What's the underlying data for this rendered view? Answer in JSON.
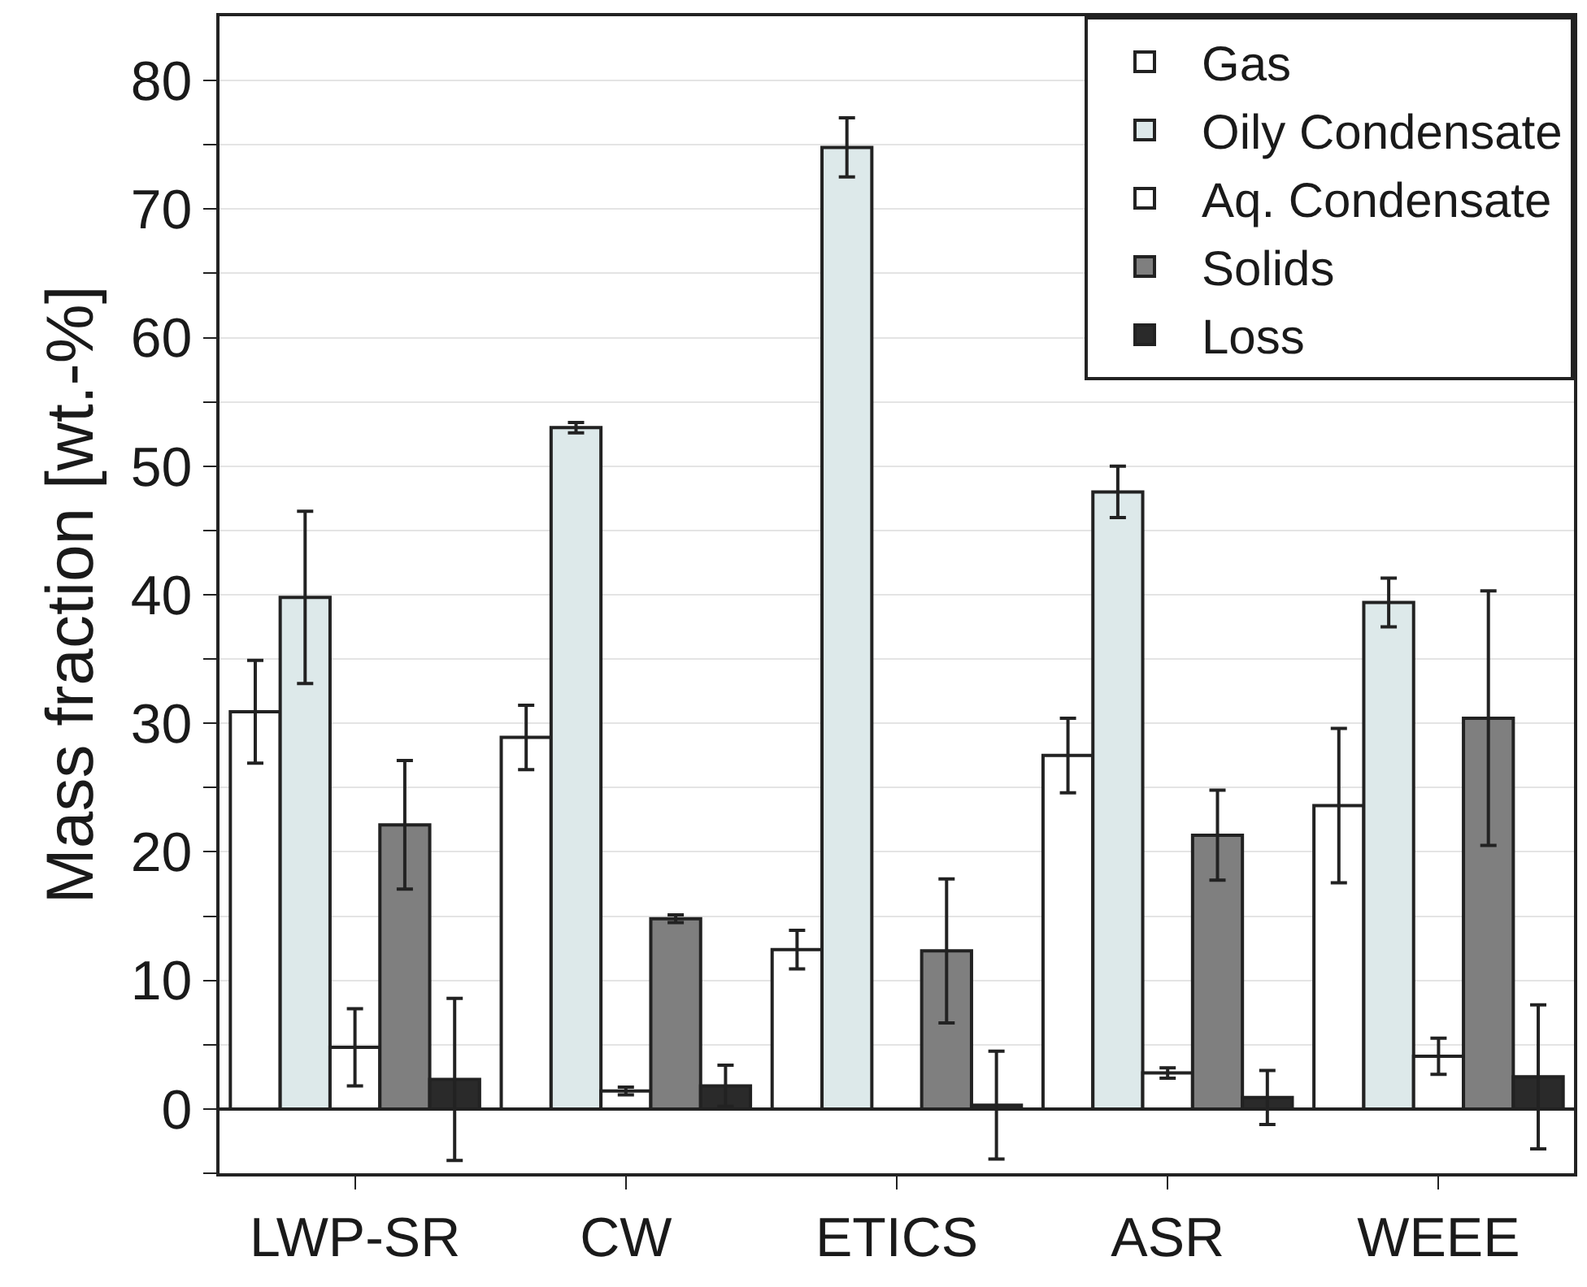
{
  "chart_data": {
    "type": "bar",
    "ylabel": "Mass fraction [wt.-%]",
    "categories": [
      "LWP-SR",
      "CW",
      "ETICS",
      "ASR",
      "WEEE"
    ],
    "series": [
      {
        "name": "Gas",
        "color": "#ffffff",
        "values": [
          30.9,
          28.9,
          12.4,
          27.5,
          23.6
        ],
        "errors": [
          4,
          2.5,
          1.5,
          2.9,
          6
        ]
      },
      {
        "name": "Oily Condensate",
        "color": "#dde9ea",
        "values": [
          39.8,
          53,
          74.8,
          48,
          39.4
        ],
        "errors": [
          6.7,
          0.4,
          2.3,
          2,
          1.9
        ]
      },
      {
        "name": "Aq. Condensate",
        "color": "#ffffff",
        "values": [
          4.8,
          1.4,
          null,
          2.8,
          4.1
        ],
        "errors": [
          3,
          0.3,
          null,
          0.4,
          1.4
        ]
      },
      {
        "name": "Solids",
        "color": "#7f7f7f",
        "values": [
          22.1,
          14.8,
          12.3,
          21.3,
          30.4
        ],
        "errors": [
          5,
          0.3,
          5.6,
          3.5,
          9.9
        ]
      },
      {
        "name": "Loss",
        "color": "#2a2a2a",
        "values": [
          2.3,
          1.8,
          0.3,
          0.9,
          2.5
        ],
        "errors": [
          6.3,
          1.6,
          4.2,
          2.1,
          5.6
        ]
      }
    ],
    "ylim": [
      -5,
      85
    ],
    "yticks": [
      {
        "value": -5,
        "label": null
      },
      0,
      {
        "value": 5,
        "label": null
      },
      10,
      {
        "value": 15,
        "label": null
      },
      20,
      {
        "value": 25,
        "label": null
      },
      30,
      {
        "value": 35,
        "label": null
      },
      40,
      {
        "value": 45,
        "label": null
      },
      50,
      {
        "value": 55,
        "label": null
      },
      60,
      {
        "value": 65,
        "label": null
      },
      70,
      {
        "value": 75,
        "label": null
      },
      80
    ],
    "ref_lines": [
      {
        "axis": "y",
        "value": 0,
        "color": "#222222"
      }
    ],
    "grid": "y",
    "legend": "top right"
  }
}
